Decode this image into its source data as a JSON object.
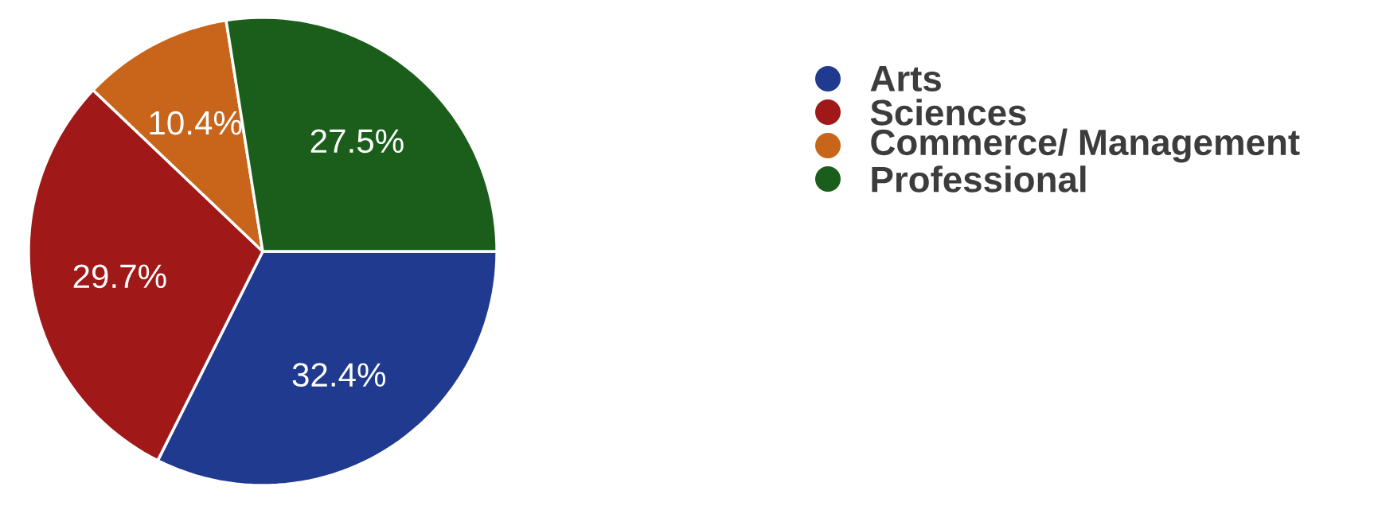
{
  "chart_data": {
    "type": "pie",
    "categories": [
      "Arts",
      "Sciences",
      "Commerce/ Management",
      "Professional"
    ],
    "values": [
      32.4,
      29.7,
      10.4,
      27.5
    ],
    "value_labels": [
      "32.4%",
      "29.7%",
      "10.4%",
      "27.5%"
    ],
    "colors": [
      "#1f3a8f",
      "#a01818",
      "#c8651b",
      "#1b5e1b"
    ],
    "legend": "right"
  }
}
